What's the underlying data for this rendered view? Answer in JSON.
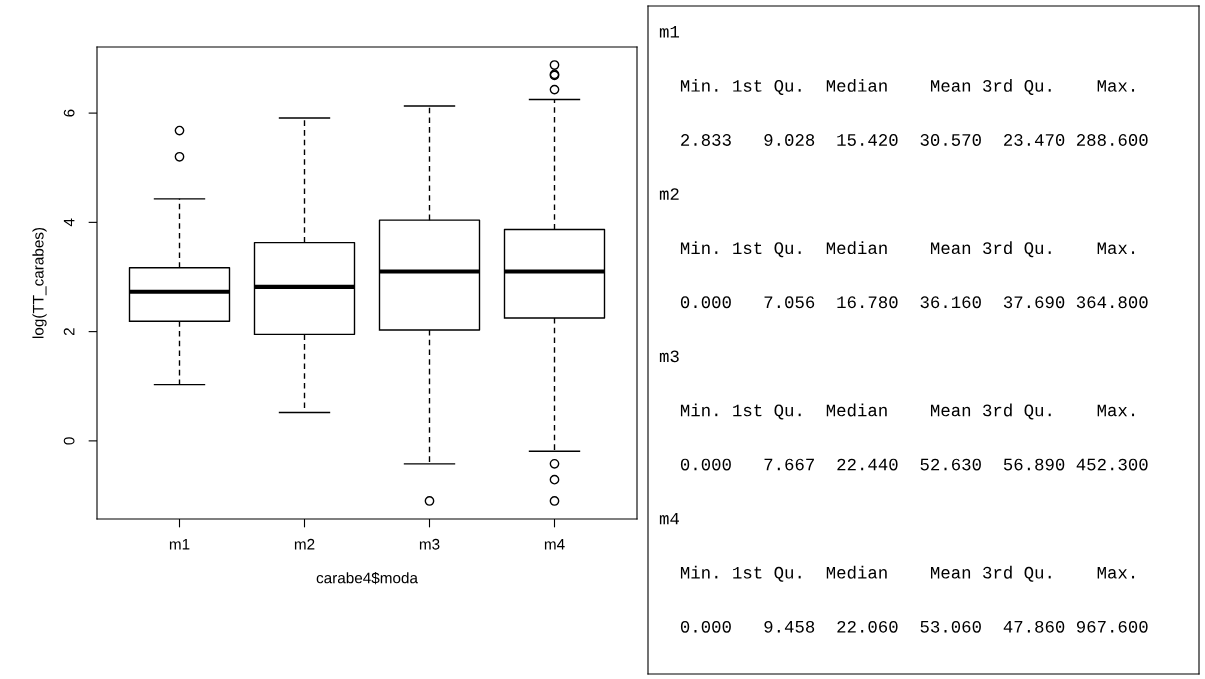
{
  "chart_data": [
    {
      "type": "box",
      "xlabel": "carabe4$moda",
      "ylabel": "log(TT_carabes)",
      "categories": [
        "m1",
        "m2",
        "m3",
        "m4"
      ],
      "ylim": [
        -1.43,
        7.21
      ],
      "yticks": [
        0,
        2,
        4,
        6
      ],
      "boxes": [
        {
          "low": 1.03,
          "q1": 2.19,
          "median": 2.73,
          "q3": 3.17,
          "high": 4.43,
          "outliers": [
            5.68,
            5.2
          ]
        },
        {
          "low": 0.52,
          "q1": 1.95,
          "median": 2.82,
          "q3": 3.63,
          "high": 5.91
        },
        {
          "low": -0.42,
          "q1": 2.03,
          "median": 3.1,
          "q3": 4.04,
          "high": 6.13,
          "outliers": [
            -1.1
          ]
        },
        {
          "low": -0.19,
          "q1": 2.25,
          "median": 3.1,
          "q3": 3.87,
          "high": 6.25,
          "outliers": [
            6.88,
            6.71,
            6.69,
            6.43,
            -0.42,
            -0.71,
            -1.1
          ]
        }
      ]
    },
    {
      "type": "other",
      "annotations": [
        "m1",
        "  Min. 1st Qu.  Median    Mean 3rd Qu.    Max.",
        "  2.833   9.028  15.420  30.570  23.470 288.600",
        "m2",
        "  Min. 1st Qu.  Median    Mean 3rd Qu.    Max.",
        "  0.000   7.056  16.780  36.160  37.690 364.800",
        "m3",
        "  Min. 1st Qu.  Median    Mean 3rd Qu.    Max.",
        "  0.000   7.667  22.440  52.630  56.890 452.300",
        "m4",
        "  Min. 1st Qu.  Median    Mean 3rd Qu.    Max.",
        "  0.000   9.458  22.060  53.060  47.860 967.600"
      ]
    }
  ]
}
